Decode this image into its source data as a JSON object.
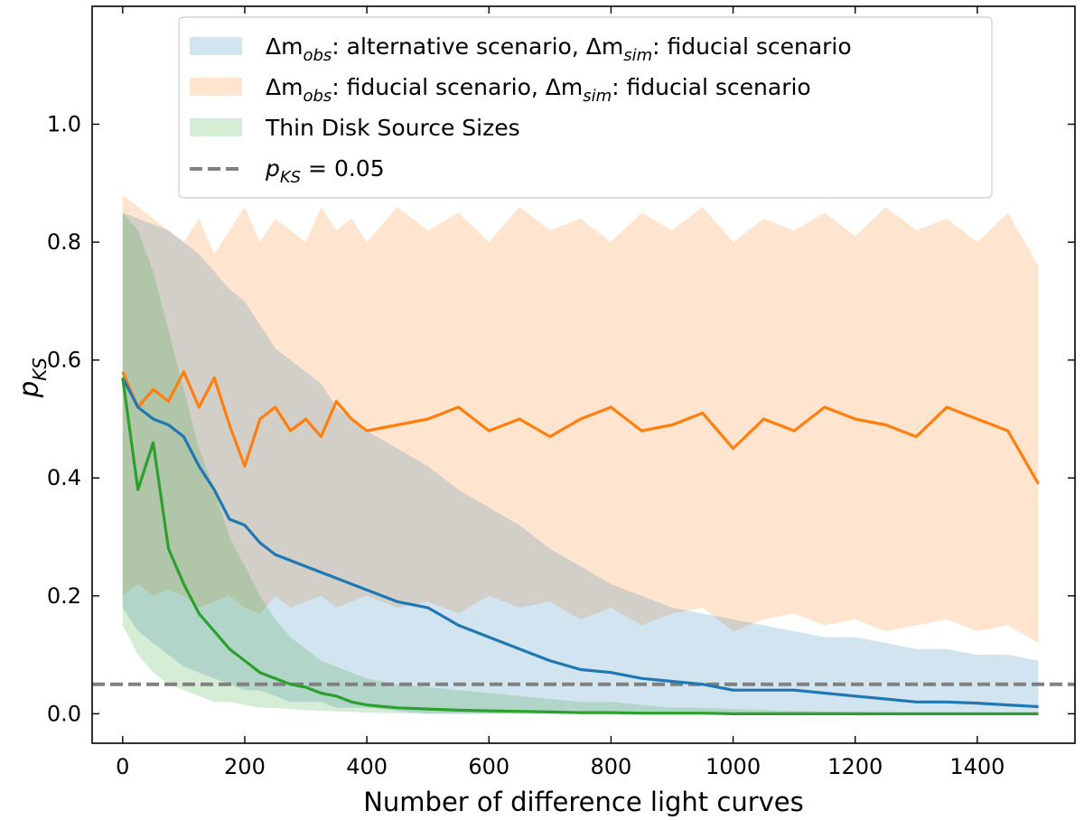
{
  "chart_data": {
    "type": "line",
    "title": "",
    "xlabel": "Number of difference light curves",
    "ylabel_main": "p",
    "ylabel_sub": "KS",
    "xlim": [
      -50,
      1560
    ],
    "ylim": [
      -0.05,
      1.2
    ],
    "xticks": [
      0,
      200,
      400,
      600,
      800,
      1000,
      1200,
      1400
    ],
    "yticks": [
      0.0,
      0.2,
      0.4,
      0.6,
      0.8,
      1.0
    ],
    "xtick_labels": [
      "0",
      "200",
      "400",
      "600",
      "800",
      "1000",
      "1200",
      "1400"
    ],
    "ytick_labels": [
      "0.0",
      "0.2",
      "0.4",
      "0.6",
      "0.8",
      "1.0"
    ],
    "grid": false,
    "legend_position": "top-center",
    "legend": [
      {
        "id": "alt",
        "prefix": "Δm",
        "sub1": "obs",
        "mid": ": alternative scenario, Δm",
        "sub2": "sim",
        "suffix": ": fiducial scenario",
        "color": "#1f77b4"
      },
      {
        "id": "fid",
        "prefix": "Δm",
        "sub1": "obs",
        "mid": ": fiducial scenario, Δm",
        "sub2": "sim",
        "suffix": ": fiducial scenario",
        "color": "#ff7f0e"
      },
      {
        "id": "thin",
        "text": "Thin Disk Source Sizes",
        "color": "#2ca02c"
      },
      {
        "id": "thresh",
        "main": "p",
        "sub": "KS",
        "suffix": " = 0.05",
        "color": "#808080"
      }
    ],
    "threshold": 0.05,
    "series": [
      {
        "name": "alternative scenario (median)",
        "color": "#1f77b4",
        "x": [
          0,
          25,
          50,
          75,
          100,
          125,
          150,
          175,
          200,
          225,
          250,
          275,
          300,
          325,
          350,
          375,
          400,
          450,
          500,
          550,
          600,
          650,
          700,
          750,
          800,
          850,
          900,
          950,
          1000,
          1050,
          1100,
          1150,
          1200,
          1250,
          1300,
          1350,
          1400,
          1450,
          1500
        ],
        "y": [
          0.57,
          0.52,
          0.5,
          0.49,
          0.47,
          0.42,
          0.38,
          0.33,
          0.32,
          0.29,
          0.27,
          0.26,
          0.25,
          0.24,
          0.23,
          0.22,
          0.21,
          0.19,
          0.18,
          0.15,
          0.13,
          0.11,
          0.09,
          0.075,
          0.07,
          0.06,
          0.055,
          0.05,
          0.04,
          0.04,
          0.04,
          0.035,
          0.03,
          0.025,
          0.02,
          0.02,
          0.018,
          0.015,
          0.012
        ],
        "band_low": [
          0.18,
          0.14,
          0.12,
          0.1,
          0.08,
          0.07,
          0.06,
          0.05,
          0.04,
          0.04,
          0.03,
          0.02,
          0.02,
          0.02,
          0.01,
          0.01,
          0.01,
          0.005,
          0.0,
          0.0,
          0.0,
          0.0,
          0.0,
          0.0,
          0.0,
          0.0,
          0.0,
          0.0,
          0.0,
          0.0,
          0.0,
          0.0,
          0.0,
          0.0,
          0.0,
          0.0,
          0.0,
          0.0,
          0.0
        ],
        "band_high": [
          0.85,
          0.84,
          0.83,
          0.82,
          0.8,
          0.78,
          0.75,
          0.72,
          0.7,
          0.66,
          0.62,
          0.6,
          0.58,
          0.56,
          0.52,
          0.5,
          0.48,
          0.45,
          0.42,
          0.38,
          0.35,
          0.32,
          0.28,
          0.25,
          0.22,
          0.2,
          0.18,
          0.17,
          0.16,
          0.15,
          0.14,
          0.13,
          0.13,
          0.12,
          0.11,
          0.11,
          0.1,
          0.1,
          0.09
        ]
      },
      {
        "name": "fiducial scenario (median)",
        "color": "#ff7f0e",
        "x": [
          0,
          25,
          50,
          75,
          100,
          125,
          150,
          175,
          200,
          225,
          250,
          275,
          300,
          325,
          350,
          375,
          400,
          450,
          500,
          550,
          600,
          650,
          700,
          750,
          800,
          850,
          900,
          950,
          1000,
          1050,
          1100,
          1150,
          1200,
          1250,
          1300,
          1350,
          1400,
          1450,
          1500
        ],
        "y": [
          0.58,
          0.52,
          0.55,
          0.53,
          0.58,
          0.52,
          0.57,
          0.49,
          0.42,
          0.5,
          0.52,
          0.48,
          0.5,
          0.47,
          0.53,
          0.5,
          0.48,
          0.49,
          0.5,
          0.52,
          0.48,
          0.5,
          0.47,
          0.5,
          0.52,
          0.48,
          0.49,
          0.51,
          0.45,
          0.5,
          0.48,
          0.52,
          0.5,
          0.49,
          0.47,
          0.52,
          0.5,
          0.48,
          0.39
        ],
        "band_low": [
          0.2,
          0.22,
          0.2,
          0.21,
          0.2,
          0.18,
          0.19,
          0.2,
          0.18,
          0.17,
          0.2,
          0.18,
          0.19,
          0.2,
          0.18,
          0.19,
          0.2,
          0.18,
          0.19,
          0.17,
          0.2,
          0.18,
          0.19,
          0.16,
          0.18,
          0.15,
          0.17,
          0.18,
          0.14,
          0.16,
          0.17,
          0.15,
          0.16,
          0.14,
          0.15,
          0.16,
          0.14,
          0.15,
          0.12
        ],
        "band_high": [
          0.88,
          0.86,
          0.84,
          0.82,
          0.8,
          0.84,
          0.78,
          0.82,
          0.86,
          0.8,
          0.84,
          0.82,
          0.8,
          0.86,
          0.82,
          0.84,
          0.8,
          0.86,
          0.82,
          0.85,
          0.8,
          0.86,
          0.82,
          0.84,
          0.8,
          0.85,
          0.82,
          0.86,
          0.8,
          0.84,
          0.82,
          0.85,
          0.81,
          0.86,
          0.82,
          0.84,
          0.8,
          0.85,
          0.76
        ]
      },
      {
        "name": "Thin Disk Source Sizes (median)",
        "color": "#2ca02c",
        "x": [
          0,
          25,
          50,
          75,
          100,
          125,
          150,
          175,
          200,
          225,
          250,
          275,
          300,
          325,
          350,
          375,
          400,
          450,
          500,
          550,
          600,
          650,
          700,
          750,
          800,
          850,
          900,
          950,
          1000,
          1100,
          1200,
          1300,
          1400,
          1500
        ],
        "y": [
          0.57,
          0.38,
          0.46,
          0.28,
          0.22,
          0.17,
          0.14,
          0.11,
          0.09,
          0.07,
          0.06,
          0.05,
          0.045,
          0.035,
          0.03,
          0.02,
          0.015,
          0.01,
          0.008,
          0.006,
          0.005,
          0.004,
          0.003,
          0.002,
          0.002,
          0.001,
          0.001,
          0.001,
          0.0,
          0.0,
          0.0,
          0.0,
          0.0,
          0.0
        ],
        "band_low": [
          0.15,
          0.1,
          0.07,
          0.05,
          0.04,
          0.03,
          0.02,
          0.02,
          0.015,
          0.01,
          0.01,
          0.008,
          0.006,
          0.005,
          0.004,
          0.003,
          0.002,
          0.001,
          0.0,
          0.0,
          0.0,
          0.0,
          0.0,
          0.0,
          0.0,
          0.0,
          0.0,
          0.0,
          0.0,
          0.0,
          0.0,
          0.0,
          0.0,
          0.0
        ],
        "band_high": [
          0.85,
          0.82,
          0.75,
          0.65,
          0.55,
          0.45,
          0.38,
          0.3,
          0.25,
          0.2,
          0.16,
          0.13,
          0.11,
          0.09,
          0.08,
          0.07,
          0.06,
          0.05,
          0.045,
          0.04,
          0.035,
          0.03,
          0.025,
          0.02,
          0.02,
          0.015,
          0.01,
          0.01,
          0.008,
          0.005,
          0.003,
          0.002,
          0.002,
          0.001
        ]
      }
    ]
  }
}
